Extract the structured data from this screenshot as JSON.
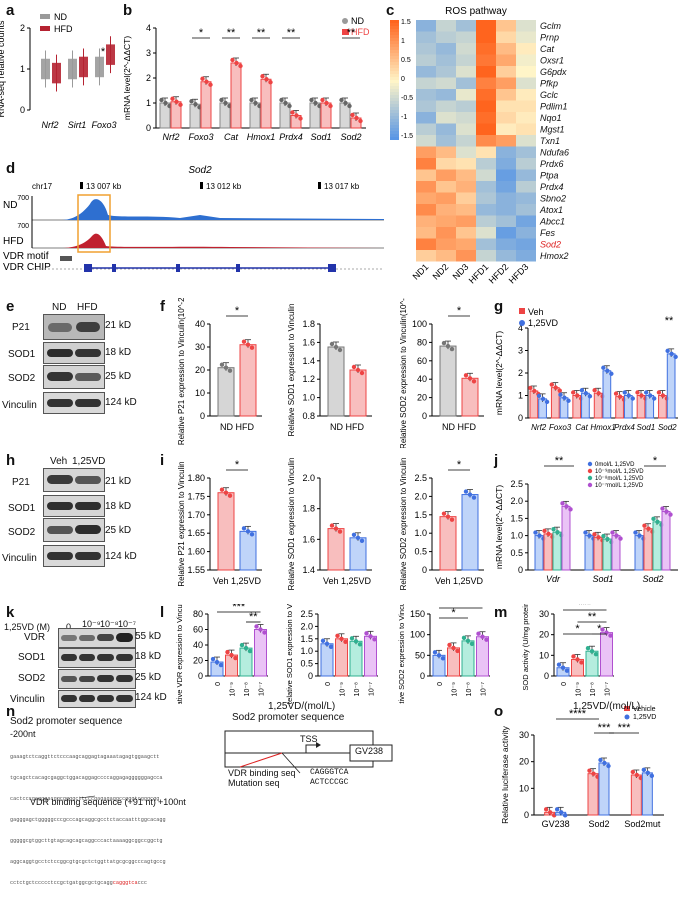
{
  "panel_labels": [
    "a",
    "b",
    "c",
    "d",
    "e",
    "f",
    "g",
    "h",
    "i",
    "j",
    "k",
    "l",
    "m",
    "n",
    "o"
  ],
  "colors": {
    "nd": "#9a9a9a",
    "hfd": "#b52231",
    "red_light": "#f06b6b",
    "blue": "#5b8ff0",
    "veh": "#e45b5b"
  },
  "groups": {
    "nd": "ND",
    "hfd": "HFD",
    "veh": "Veh",
    "vd": "1,25VD"
  },
  "signif": {
    "one": "*",
    "two": "**",
    "three": "***",
    "four": "****"
  },
  "chart_data": [
    {
      "panel": "a",
      "type": "box",
      "ylabel": "RNA-seq relative counts",
      "ylim": [
        0,
        2
      ],
      "yticks": [
        "0",
        "1",
        "2"
      ],
      "categories": [
        "Nrf2",
        "Sirt1",
        "Foxo3"
      ],
      "series": [
        {
          "name": "ND",
          "medians": [
            1.0,
            1.0,
            1.05
          ]
        },
        {
          "name": "HFD",
          "medians": [
            0.9,
            1.05,
            1.35
          ]
        }
      ]
    },
    {
      "panel": "b",
      "type": "bar",
      "ylabel": "mRNA level(2^-ΔΔCT)",
      "ylim": [
        0,
        4
      ],
      "yticks": [
        "0",
        "1",
        "2",
        "3",
        "4"
      ],
      "categories": [
        "Nrf2",
        "Foxo3",
        "Cat",
        "Hmox1",
        "Prdx4",
        "Sod1",
        "Sod2"
      ],
      "series": [
        {
          "name": "ND",
          "values": [
            1.0,
            0.95,
            1.0,
            1.0,
            1.0,
            1.0,
            1.0
          ]
        },
        {
          "name": "HFD",
          "values": [
            1.05,
            1.85,
            2.6,
            1.95,
            0.5,
            1.0,
            0.4
          ]
        }
      ]
    },
    {
      "panel": "c",
      "type": "heatmap",
      "title": "ROS pathway",
      "columns": [
        "ND1",
        "ND2",
        "ND3",
        "HFD1",
        "HFD2",
        "HFD3"
      ],
      "rows": [
        "Gclm",
        "Prnp",
        "Cat",
        "Oxsr1",
        "G6pdx",
        "Pfkp",
        "Gclc",
        "Pdlim1",
        "Nqo1",
        "Mgst1",
        "Txn1",
        "Ndufa6",
        "Prdx6",
        "Ptpa",
        "Prdx4",
        "Sbno2",
        "Atox1",
        "Abcc1",
        "Fes",
        "Sod2",
        "Hmox2"
      ],
      "scale_ticks": [
        "1.5",
        "1",
        "0.5",
        "0",
        "-0.5",
        "-1",
        "-1.5"
      ],
      "values": [
        [
          -1,
          -0.5,
          -0.8,
          1.5,
          0.5,
          -0.3
        ],
        [
          -0.8,
          -0.6,
          -0.5,
          1.5,
          0.3,
          -0.2
        ],
        [
          -0.7,
          -0.9,
          -0.4,
          1.4,
          0.6,
          0.1
        ],
        [
          -0.6,
          -0.8,
          -0.5,
          1.3,
          0.8,
          -0.1
        ],
        [
          -0.9,
          -0.7,
          -0.3,
          1.5,
          0.4,
          0.0
        ],
        [
          -0.5,
          -0.4,
          -0.8,
          1.2,
          0.9,
          -0.3
        ],
        [
          -0.8,
          -0.9,
          -0.2,
          1.4,
          0.5,
          0.1
        ],
        [
          -0.7,
          -0.5,
          -0.6,
          1.5,
          0.2,
          0.2
        ],
        [
          -1.0,
          -0.3,
          -0.4,
          1.4,
          0.3,
          0.1
        ],
        [
          -0.6,
          -0.9,
          -0.3,
          1.5,
          0.1,
          0.2
        ],
        [
          -0.4,
          -0.8,
          -0.5,
          1.1,
          0.9,
          -0.3
        ],
        [
          0.9,
          0.6,
          -0.3,
          0.2,
          -1.0,
          -0.8
        ],
        [
          1.2,
          0.3,
          0.2,
          -0.6,
          -1.1,
          -0.6
        ],
        [
          0.5,
          0.9,
          0.6,
          -0.4,
          -1.3,
          -0.9
        ],
        [
          1.0,
          0.5,
          0.7,
          -0.8,
          -1.2,
          -0.6
        ],
        [
          0.8,
          0.9,
          0.4,
          -0.7,
          -1.0,
          -0.9
        ],
        [
          1.1,
          0.7,
          0.6,
          -0.9,
          -1.0,
          -0.8
        ],
        [
          0.7,
          0.8,
          0.9,
          -0.6,
          -0.8,
          -1.2
        ],
        [
          0.6,
          1.0,
          0.5,
          -0.3,
          -1.3,
          -1.0
        ],
        [
          1.2,
          0.9,
          0.8,
          -0.8,
          -1.1,
          -1.2
        ],
        [
          0.4,
          0.6,
          1.0,
          -0.5,
          -0.9,
          -1.1
        ]
      ]
    },
    {
      "panel": "d",
      "type": "track",
      "title": "Sod2",
      "chrom": "chr17",
      "positions": [
        "13 007 kb",
        "13 012 kb",
        "13 017 kb"
      ],
      "tracks": [
        "ND",
        "HFD",
        "VDR motif",
        "VDR CHIP"
      ],
      "ymax": [
        "700",
        "700"
      ]
    },
    {
      "panel": "f",
      "type": "bar",
      "ylabel": "Relative P21 expression to Vinculin(10^-2)",
      "ylim": [
        0,
        40
      ],
      "yticks": [
        "0",
        "10",
        "20",
        "30",
        "40"
      ],
      "categories": [
        "ND",
        "HFD"
      ],
      "values": [
        21,
        31
      ]
    },
    {
      "panel": "f",
      "type": "bar",
      "ylabel": "Relative SOD1 expression to Vinculin",
      "ylim": [
        0.8,
        1.8
      ],
      "yticks": [
        "0.8",
        "1.0",
        "1.2",
        "1.4",
        "1.6",
        "1.8"
      ],
      "categories": [
        "ND",
        "HFD"
      ],
      "values": [
        1.55,
        1.3
      ]
    },
    {
      "panel": "f",
      "type": "bar",
      "ylabel": "Relative SOD2 expression to Vinculin(10^-2)",
      "ylim": [
        0,
        100
      ],
      "yticks": [
        "0",
        "20",
        "40",
        "60",
        "80",
        "100"
      ],
      "categories": [
        "ND",
        "HFD"
      ],
      "values": [
        76,
        41
      ]
    },
    {
      "panel": "g",
      "type": "bar",
      "ylabel": "mRNA level(2^-ΔΔCT)",
      "ylim": [
        0,
        4
      ],
      "yticks": [
        "0",
        "1",
        "2",
        "3",
        "4"
      ],
      "categories": [
        "Nrf2",
        "Foxo3",
        "Cat",
        "Hmox1",
        "Prdx4",
        "Sod1",
        "Sod2"
      ],
      "series": [
        {
          "name": "Veh",
          "values": [
            1.2,
            1.35,
            1.0,
            1.1,
            0.95,
            1.0,
            1.0
          ]
        },
        {
          "name": "1,25VD",
          "values": [
            0.85,
            0.9,
            1.1,
            2.1,
            1.0,
            1.0,
            2.85
          ]
        }
      ]
    },
    {
      "panel": "i",
      "type": "bar",
      "ylabel": "Relative P21 expression to Vinculin",
      "ylim": [
        1.55,
        1.8
      ],
      "yticks": [
        "1.55",
        "1.60",
        "1.65",
        "1.70",
        "1.75",
        "1.80"
      ],
      "categories": [
        "Veh",
        "1,25VD"
      ],
      "values": [
        1.76,
        1.655
      ]
    },
    {
      "panel": "i",
      "type": "bar",
      "ylabel": "Relative SOD1 expression to Vinculin",
      "ylim": [
        1.4,
        2.0
      ],
      "yticks": [
        "1.4",
        "1.6",
        "1.8",
        "2.0"
      ],
      "categories": [
        "Veh",
        "1,25VD"
      ],
      "values": [
        1.67,
        1.61
      ]
    },
    {
      "panel": "i",
      "type": "bar",
      "ylabel": "Relative SOD2 expression to Vinculin",
      "ylim": [
        0,
        2.5
      ],
      "yticks": [
        "0",
        "0.5",
        "1.0",
        "1.5",
        "2.0",
        "2.5"
      ],
      "categories": [
        "Veh",
        "1,25VD"
      ],
      "values": [
        1.45,
        2.05
      ]
    },
    {
      "panel": "j",
      "type": "bar",
      "ylabel": "mRNA level(2^-ΔΔCT)",
      "ylim": [
        0,
        2.5
      ],
      "yticks": [
        "0",
        "0.5",
        "1.0",
        "1.5",
        "2.0",
        "2.5"
      ],
      "categories": [
        "Vdr",
        "Sod1",
        "Sod2"
      ],
      "legend": [
        "0mol/L 1,25VD",
        "10⁻⁹mol/L 1,25VD",
        "10⁻⁸mol/L 1,25VD",
        "10⁻⁷mol/L 1,25VD"
      ],
      "series": [
        {
          "name": "0",
          "values": [
            1.0,
            1.0,
            1.0
          ]
        },
        {
          "name": "1e-9",
          "values": [
            1.05,
            0.95,
            1.2
          ]
        },
        {
          "name": "1e-8",
          "values": [
            1.1,
            0.9,
            1.4
          ]
        },
        {
          "name": "1e-7",
          "values": [
            1.85,
            1.0,
            1.7
          ]
        }
      ]
    },
    {
      "panel": "l",
      "type": "bar",
      "ylabel": "Relative VDR expression to Vinculin(10^-2)",
      "ylim": [
        0,
        80
      ],
      "yticks": [
        "0",
        "20",
        "40",
        "60",
        "80"
      ],
      "xlabel": "1,25VD/(mol/L)",
      "categories": [
        "0",
        "10⁻⁹",
        "10⁻⁸",
        "10⁻⁷"
      ],
      "values": [
        18,
        27,
        36,
        60
      ]
    },
    {
      "panel": "l",
      "type": "bar",
      "ylabel": "Relative SOD1 expression to Vinculin",
      "ylim": [
        0,
        2.5
      ],
      "yticks": [
        "0",
        "0.5",
        "1.0",
        "1.5",
        "2.0",
        "2.5"
      ],
      "categories": [
        "0",
        "10⁻⁹",
        "10⁻⁸",
        "10⁻⁷"
      ],
      "values": [
        1.3,
        1.5,
        1.4,
        1.6
      ]
    },
    {
      "panel": "l",
      "type": "bar",
      "ylabel": "Relative SOD2 expression to Vinculin(10^-2)",
      "ylim": [
        0,
        150
      ],
      "yticks": [
        "0",
        "50",
        "100",
        "150"
      ],
      "categories": [
        "0",
        "10⁻⁹",
        "10⁻⁸",
        "10⁻⁷"
      ],
      "values": [
        50,
        68,
        85,
        95
      ]
    },
    {
      "panel": "m",
      "type": "bar",
      "ylabel": "SOD activity (U/mg protein)",
      "ylim": [
        0,
        30
      ],
      "yticks": [
        "0",
        "10",
        "20",
        "30"
      ],
      "xlabel": "1,25VD/(mol/L)",
      "categories": [
        "0",
        "10⁻⁹",
        "10⁻⁸",
        "10⁻⁷"
      ],
      "values": [
        4,
        8,
        12,
        21
      ]
    },
    {
      "panel": "o",
      "type": "bar",
      "ylabel": "Relative luciferase activity",
      "ylim": [
        0,
        30
      ],
      "yticks": [
        "0",
        "10",
        "20",
        "30"
      ],
      "categories": [
        "GV238",
        "Sod2",
        "Sod2mut"
      ],
      "legend": [
        "Vehicle",
        "1,25VD"
      ],
      "series": [
        {
          "name": "Vehicle",
          "values": [
            1,
            15.5,
            15
          ]
        },
        {
          "name": "1,25VD",
          "values": [
            1,
            19.5,
            15.8
          ]
        }
      ]
    }
  ],
  "blot_e": {
    "cols": [
      "ND",
      "HFD"
    ],
    "rows": [
      "P21",
      "SOD1",
      "SOD2",
      "Vinculin"
    ],
    "kd": [
      "21 kD",
      "18 kD",
      "25 kD",
      "124 kD"
    ]
  },
  "blot_h": {
    "cols": [
      "Veh",
      "1,25VD"
    ],
    "rows": [
      "P21",
      "SOD1",
      "SOD2",
      "Vinculin"
    ],
    "kd": [
      "21 kD",
      "18 kD",
      "25 kD",
      "124 kD"
    ]
  },
  "blot_k": {
    "cols": [
      "0",
      "10⁻⁹",
      "10⁻⁸",
      "10⁻⁷"
    ],
    "col_label": "1,25VD (M)",
    "rows": [
      "VDR",
      "SOD1",
      "SOD2",
      "Vinculin"
    ],
    "kd": [
      "55 kD",
      "18 kD",
      "25 kD",
      "124 kD"
    ]
  },
  "panel_n": {
    "title": "Sod2 promoter sequence",
    "start": "-200nt",
    "seq_lines": [
      "gaaagtctcaggttctcccaagcaggagtagaaatagagtggaagctt",
      "tgcagctcacagcgaggctggacaggagccccaggagaggggggagcca",
      "cactcccgagggacggcggggcttcccgagagaggccgggtcgggcgg",
      "gagggagctgggggcccgcccagcaggcgcctctaccaatttggcacagg",
      "gggggcgtggcttgtagcagcagcaggcccactaaaaggcggccggctg",
      "aggcaggtgcctctccggcgtgcgctctggttatgcgcggcccagtgccg",
      "cctctgctccccctccgctgatggcgctgcagg"
    ],
    "seq_red": "cagggtca",
    "seq_tail": "ccc",
    "vdr_site": "VDR binding sequence (+91 nt)",
    "end": "+100nt",
    "diagram_title": "Sod2 promoter sequence",
    "tss": "TSS",
    "vdr_seq_label": "VDR binding seq",
    "mut_seq_label": "Mutation seq",
    "vdr_seq": "CAGGGTCA",
    "mut_seq": "ACTCCCGC",
    "vector": "GV238"
  }
}
